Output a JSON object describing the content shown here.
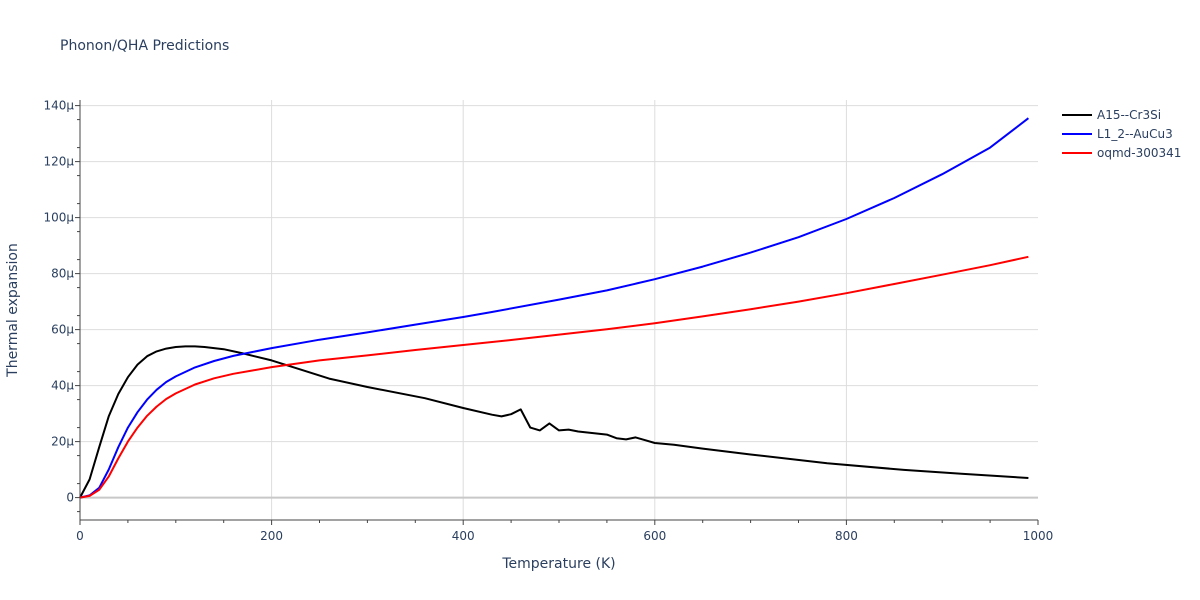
{
  "chart_data": {
    "type": "line",
    "title": "Phonon/QHA Predictions",
    "xlabel": "Temperature (K)",
    "ylabel": "Thermal expansion",
    "xlim": [
      0,
      1000
    ],
    "ylim": [
      -8e-06,
      0.000142
    ],
    "x_ticks": [
      0,
      200,
      400,
      600,
      800,
      1000
    ],
    "x_tick_labels": [
      "0",
      "200",
      "400",
      "600",
      "800",
      "1000"
    ],
    "y_ticks": [
      0,
      2e-05,
      4e-05,
      6e-05,
      8e-05,
      0.0001,
      0.00012,
      0.00014
    ],
    "y_tick_labels": [
      "0",
      "20µ",
      "40µ",
      "60µ",
      "80µ",
      "100µ",
      "120µ",
      "140µ"
    ],
    "grid": true,
    "legend_position": "top-right",
    "series": [
      {
        "name": "A15--Cr3Si",
        "color": "#000000",
        "x": [
          0,
          10,
          20,
          30,
          40,
          50,
          60,
          70,
          80,
          90,
          100,
          110,
          120,
          130,
          150,
          170,
          200,
          230,
          260,
          300,
          360,
          400,
          430,
          440,
          450,
          460,
          470,
          480,
          490,
          500,
          510,
          520,
          550,
          560,
          570,
          580,
          590,
          600,
          620,
          650,
          700,
          780,
          860,
          920,
          990
        ],
        "y": [
          0,
          6.5e-06,
          1.8e-05,
          2.9e-05,
          3.7e-05,
          4.3e-05,
          4.75e-05,
          5.05e-05,
          5.22e-05,
          5.32e-05,
          5.38e-05,
          5.4e-05,
          5.4e-05,
          5.38e-05,
          5.3e-05,
          5.15e-05,
          4.9e-05,
          4.58e-05,
          4.25e-05,
          3.95e-05,
          3.55e-05,
          3.2e-05,
          2.96e-05,
          2.9e-05,
          2.98e-05,
          3.15e-05,
          2.5e-05,
          2.4e-05,
          2.65e-05,
          2.4e-05,
          2.43e-05,
          2.36e-05,
          2.25e-05,
          2.12e-05,
          2.08e-05,
          2.15e-05,
          2.05e-05,
          1.95e-05,
          1.89e-05,
          1.75e-05,
          1.54e-05,
          1.23e-05,
          9.9e-06,
          8.5e-06,
          7e-06
        ]
      },
      {
        "name": "L1_2--AuCu3",
        "color": "#0000ff",
        "x": [
          0,
          10,
          20,
          30,
          40,
          50,
          60,
          70,
          80,
          90,
          100,
          120,
          140,
          160,
          180,
          200,
          250,
          300,
          350,
          400,
          430,
          500,
          550,
          600,
          650,
          700,
          750,
          800,
          850,
          900,
          950,
          990
        ],
        "y": [
          0,
          8e-07,
          3.5e-06,
          1e-05,
          1.8e-05,
          2.5e-05,
          3.05e-05,
          3.5e-05,
          3.85e-05,
          4.13e-05,
          4.33e-05,
          4.65e-05,
          4.88e-05,
          5.06e-05,
          5.2e-05,
          5.34e-05,
          5.64e-05,
          5.9e-05,
          6.18e-05,
          6.45e-05,
          6.63e-05,
          7.07e-05,
          7.4e-05,
          7.8e-05,
          8.25e-05,
          8.75e-05,
          9.3e-05,
          9.95e-05,
          0.000107,
          0.0001155,
          0.000125,
          0.0001355
        ]
      },
      {
        "name": "oqmd-300341",
        "color": "#ff0000",
        "x": [
          0,
          10,
          20,
          30,
          40,
          50,
          60,
          70,
          80,
          90,
          100,
          120,
          140,
          160,
          180,
          200,
          250,
          300,
          350,
          400,
          450,
          500,
          550,
          600,
          650,
          700,
          750,
          800,
          850,
          900,
          950,
          990
        ],
        "y": [
          0,
          6e-07,
          2.8e-06,
          7.5e-06,
          1.4e-05,
          2e-05,
          2.5e-05,
          2.92e-05,
          3.25e-05,
          3.52e-05,
          3.72e-05,
          4.04e-05,
          4.26e-05,
          4.42e-05,
          4.54e-05,
          4.66e-05,
          4.9e-05,
          5.08e-05,
          5.27e-05,
          5.45e-05,
          5.63e-05,
          5.82e-05,
          6.01e-05,
          6.23e-05,
          6.47e-05,
          6.73e-05,
          7e-05,
          7.3e-05,
          7.63e-05,
          7.96e-05,
          8.3e-05,
          8.6e-05
        ]
      }
    ]
  }
}
